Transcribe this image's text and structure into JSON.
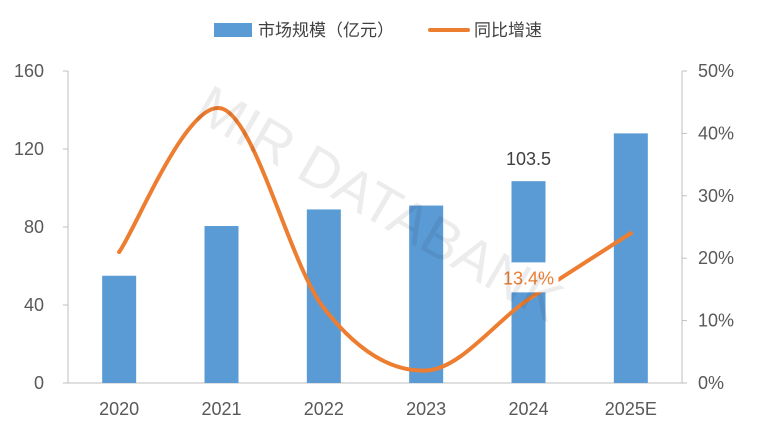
{
  "chart_data": {
    "type": "bar",
    "categories": [
      "2020",
      "2021",
      "2022",
      "2023",
      "2024",
      "2025E"
    ],
    "series": [
      {
        "name": "市场规模（亿元）",
        "type": "bar",
        "axis": "left",
        "color": "#5B9BD5",
        "values": [
          55,
          80.5,
          89,
          91,
          103.5,
          128
        ]
      },
      {
        "name": "同比增速",
        "type": "line",
        "axis": "right",
        "color": "#ED7D31",
        "values": [
          0.21,
          0.44,
          0.12,
          0.02,
          0.134,
          0.24
        ]
      }
    ],
    "y_left": {
      "ylim": [
        0,
        160
      ],
      "ticks": [
        0,
        40,
        80,
        120,
        160
      ],
      "tick_labels": [
        "0",
        "40",
        "80",
        "120",
        "160"
      ]
    },
    "y_right": {
      "ylim": [
        0,
        0.5
      ],
      "ticks": [
        0,
        0.1,
        0.2,
        0.3,
        0.4,
        0.5
      ],
      "tick_labels": [
        "0%",
        "10%",
        "20%",
        "30%",
        "40%",
        "50%"
      ]
    },
    "data_labels": [
      {
        "series": 0,
        "index": 4,
        "text": "103.5"
      },
      {
        "series": 1,
        "index": 4,
        "text": "13.4%"
      }
    ],
    "legend_position": "top",
    "watermark": "MIR DATABANK"
  }
}
